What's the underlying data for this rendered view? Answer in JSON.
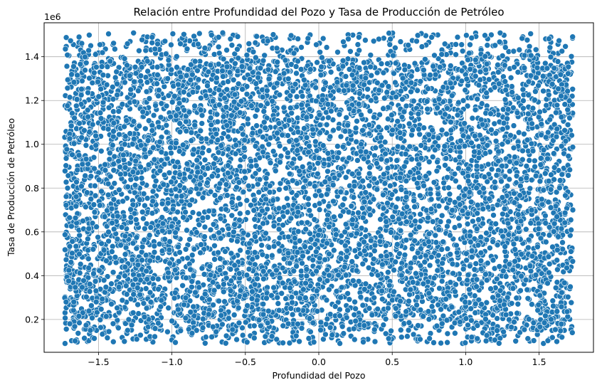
{
  "chart_data": {
    "type": "scatter",
    "title": "Relación entre Profundidad del Pozo y Tasa de Producción de Petróleo",
    "xlabel": "Profundidad del Pozo",
    "ylabel": "Tasa de Producción de Petróleo",
    "y_offset_label": "1e6",
    "xlim": [
      -1.87,
      1.87
    ],
    "ylim": [
      0.05,
      1.555
    ],
    "x_ticks": [
      -1.5,
      -1.0,
      -0.5,
      0.0,
      0.5,
      1.0,
      1.5
    ],
    "x_tick_labels": [
      "−1.5",
      "−1.0",
      "−0.5",
      "0.0",
      "0.5",
      "1.0",
      "1.5"
    ],
    "y_ticks": [
      0.2,
      0.4,
      0.6,
      0.8,
      1.0,
      1.2,
      1.4
    ],
    "y_tick_labels": [
      "0.2",
      "0.4",
      "0.6",
      "0.8",
      "1.0",
      "1.2",
      "1.4"
    ],
    "grid": true,
    "marker_color": "#1f77b4",
    "marker_edge_color": "#ffffff",
    "data_extent": {
      "x_min": -1.73,
      "x_max": 1.73,
      "y_min": 0.09,
      "y_max": 1.51,
      "dense_y_min": 0.15,
      "dense_y_max": 1.38
    },
    "approx_point_count": 7000
  }
}
